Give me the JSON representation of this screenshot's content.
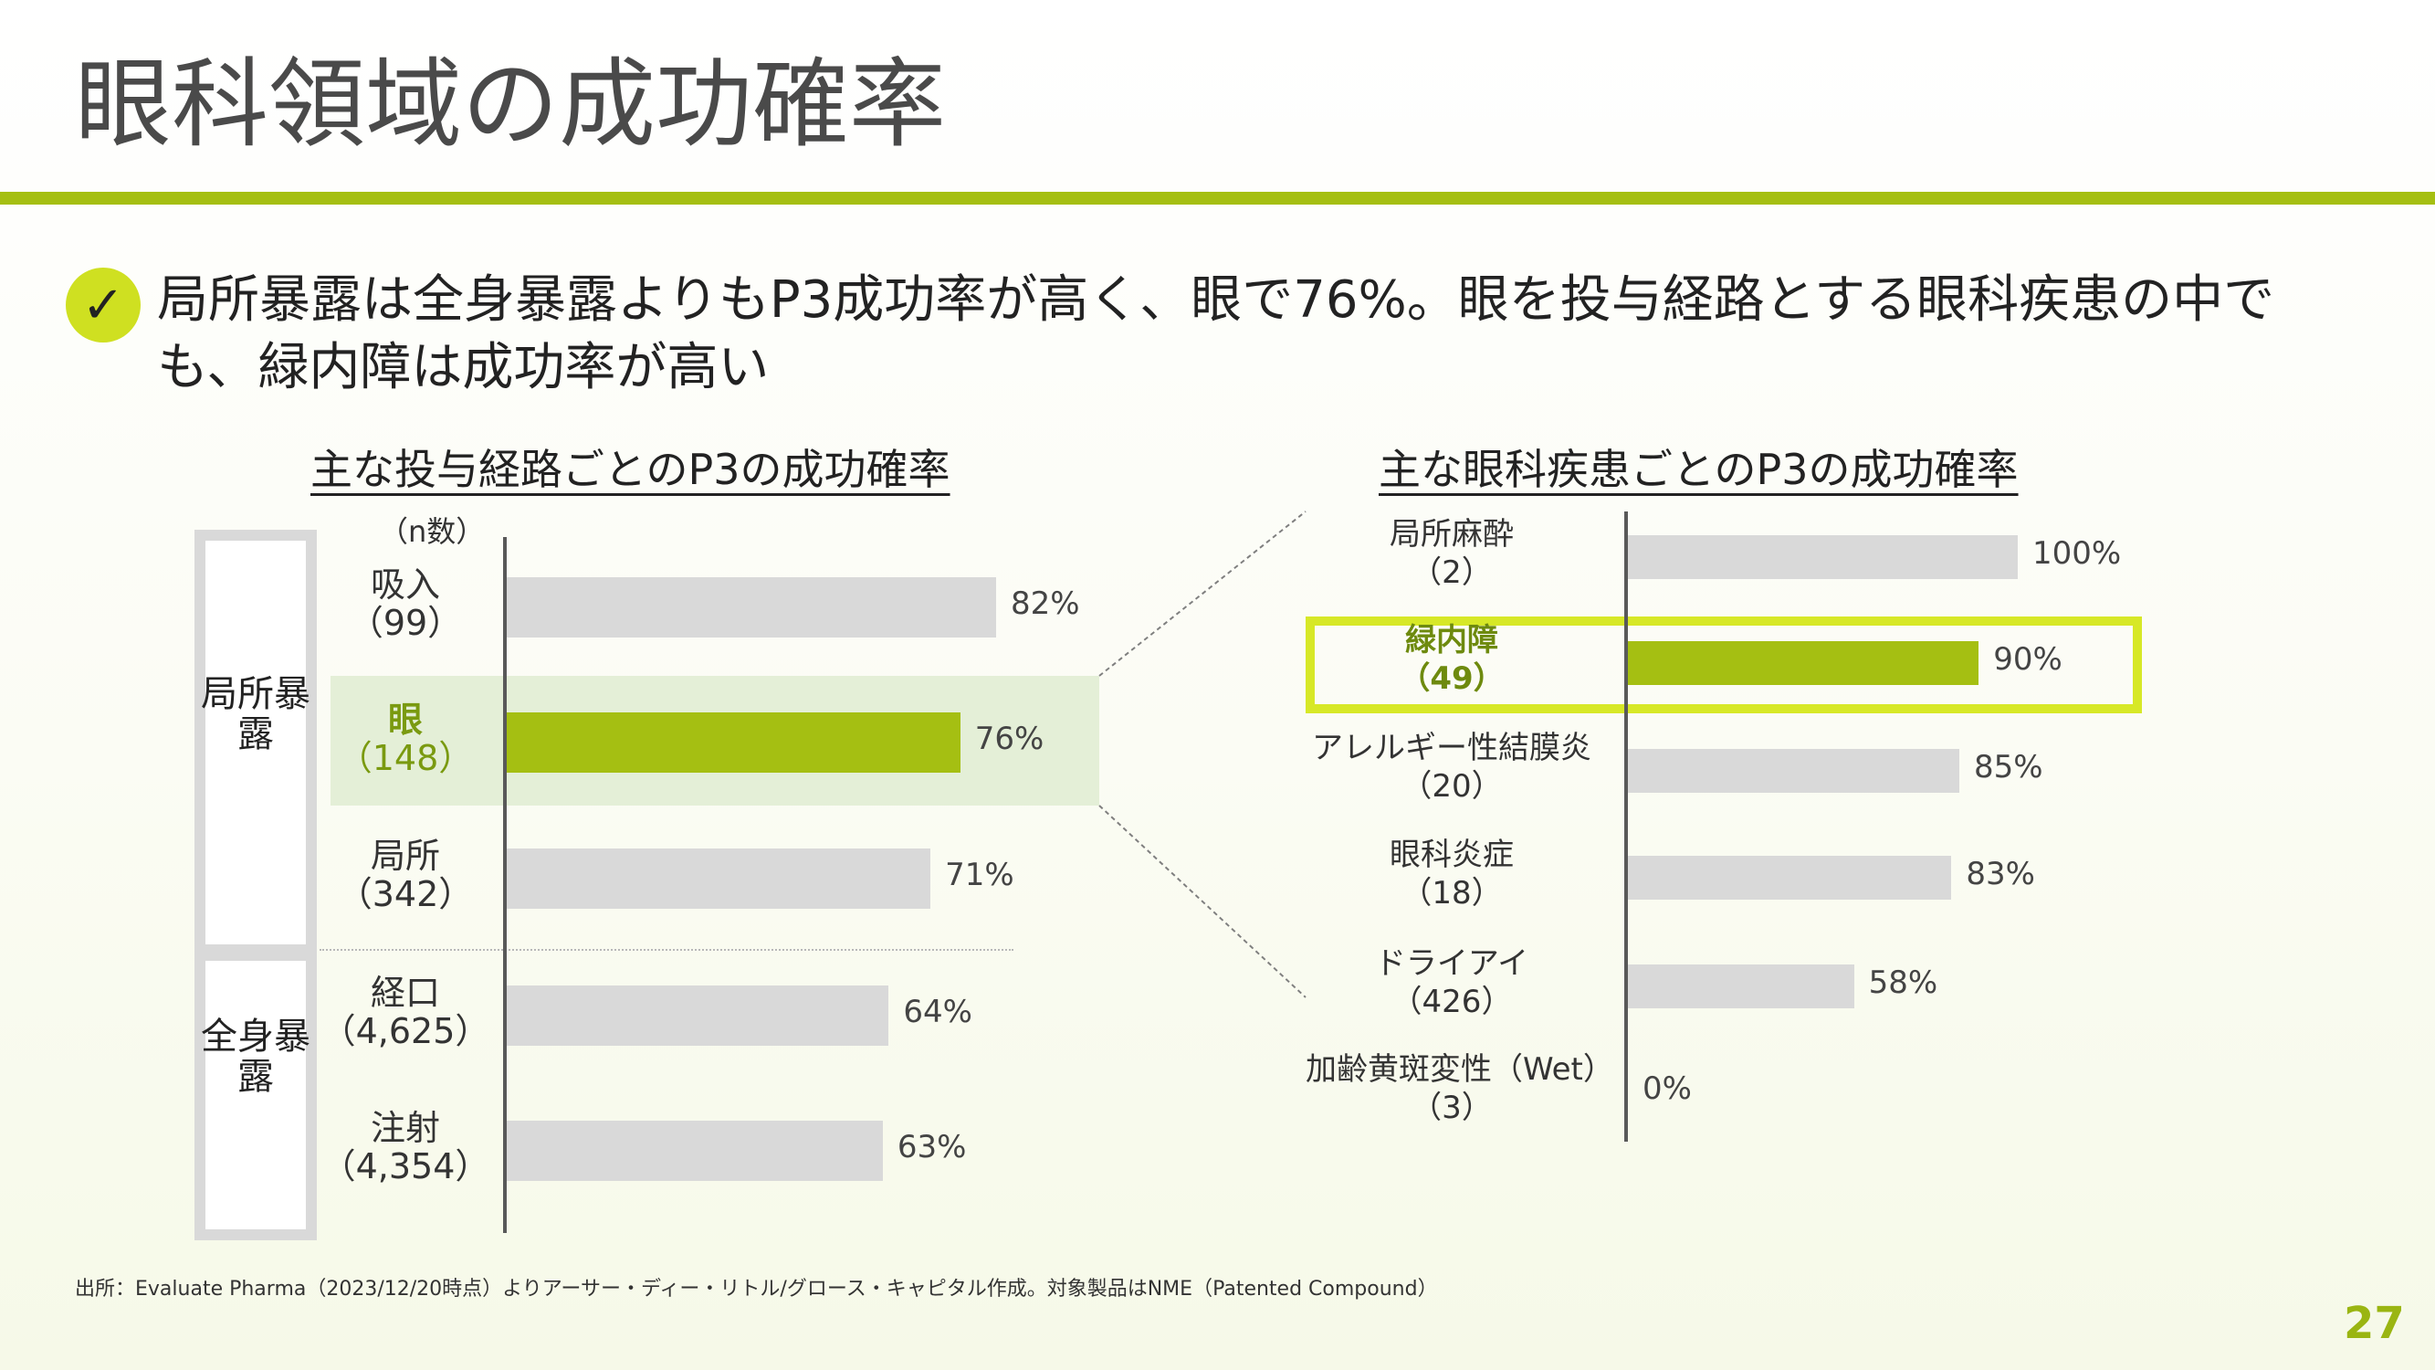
{
  "title": "眼科領域の成功確率",
  "headline": {
    "icon": "check-icon",
    "text": "局所暴露は全身暴露よりもP3成功率が高く、眼で76%。眼を投与経路とする眼科疾患の中でも、緑内障は成功率が高い"
  },
  "colors": {
    "accent": "#a5bf12",
    "bar_gray": "#d9d9d9",
    "highlight_fill": "#e4efd7",
    "highlight_border": "#d7e827"
  },
  "chart_data": [
    {
      "type": "bar",
      "orientation": "horizontal",
      "title": "主な投与経路ごとのP3の成功確率",
      "n_label": "（n数）",
      "groups": [
        {
          "name": "局所暴露",
          "categories": [
            "吸入",
            "眼",
            "局所"
          ]
        },
        {
          "name": "全身暴露",
          "categories": [
            "経口",
            "注射"
          ]
        }
      ],
      "categories": [
        "吸入",
        "眼",
        "局所",
        "経口",
        "注射"
      ],
      "n": [
        "（99）",
        "（148）",
        "（342）",
        "（4,625）",
        "（4,354）"
      ],
      "values": [
        82,
        76,
        71,
        64,
        63
      ],
      "value_labels": [
        "82%",
        "76%",
        "71%",
        "64%",
        "63%"
      ],
      "unit": "%",
      "highlight": "眼",
      "xlim": [
        0,
        100
      ]
    },
    {
      "type": "bar",
      "orientation": "horizontal",
      "title": "主な眼科疾患ごとのP3の成功確率",
      "categories": [
        "局所麻酔",
        "緑内障",
        "アレルギー性結膜炎",
        "眼科炎症",
        "ドライアイ",
        "加齢黄斑変性（Wet）"
      ],
      "n": [
        "（2）",
        "（49）",
        "（20）",
        "（18）",
        "（426）",
        "（3）"
      ],
      "values": [
        100,
        90,
        85,
        83,
        58,
        0
      ],
      "value_labels": [
        "100%",
        "90%",
        "85%",
        "83%",
        "58%",
        "0%"
      ],
      "unit": "%",
      "highlight": "緑内障",
      "xlim": [
        0,
        100
      ]
    }
  ],
  "source": "出所：Evaluate Pharma（2023/12/20時点）よりアーサー・ディー・リトル/グロース・キャピタル作成。対象製品はNME（Patented Compound）",
  "page_number": "27"
}
